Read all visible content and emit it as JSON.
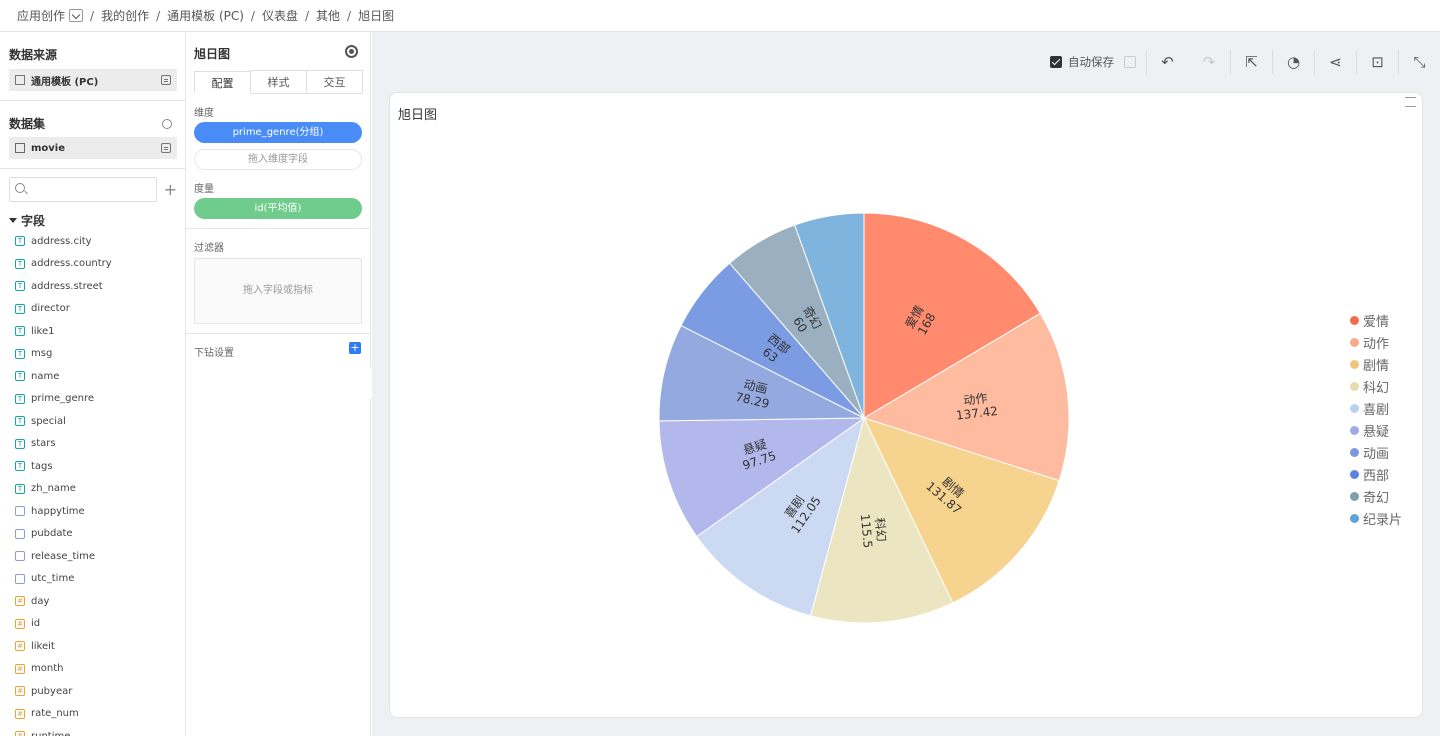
{
  "breadcrumb": {
    "items": [
      "应用创作",
      "我的创作",
      "通用模板 (PC)",
      "仪表盘",
      "其他",
      "旭日图"
    ]
  },
  "left": {
    "datasource_title": "数据来源",
    "datasource_name": "通用模板 (PC)",
    "dataset_title": "数据集",
    "dataset_name": "movie",
    "search_placeholder": "",
    "fields_title": "字段",
    "fields": [
      {
        "name": "address.city",
        "type": "text"
      },
      {
        "name": "address.country",
        "type": "text"
      },
      {
        "name": "address.street",
        "type": "text"
      },
      {
        "name": "director",
        "type": "text"
      },
      {
        "name": "like1",
        "type": "text"
      },
      {
        "name": "msg",
        "type": "text"
      },
      {
        "name": "name",
        "type": "text"
      },
      {
        "name": "prime_genre",
        "type": "text"
      },
      {
        "name": "special",
        "type": "text"
      },
      {
        "name": "stars",
        "type": "text"
      },
      {
        "name": "tags",
        "type": "text"
      },
      {
        "name": "zh_name",
        "type": "text"
      },
      {
        "name": "happytime",
        "type": "date"
      },
      {
        "name": "pubdate",
        "type": "date"
      },
      {
        "name": "release_time",
        "type": "date"
      },
      {
        "name": "utc_time",
        "type": "date"
      },
      {
        "name": "day",
        "type": "num"
      },
      {
        "name": "id",
        "type": "num"
      },
      {
        "name": "likeit",
        "type": "num"
      },
      {
        "name": "month",
        "type": "num"
      },
      {
        "name": "pubyear",
        "type": "num"
      },
      {
        "name": "rate_num",
        "type": "num"
      },
      {
        "name": "runtime",
        "type": "num"
      }
    ]
  },
  "config": {
    "title": "旭日图",
    "tabs": [
      "配置",
      "样式",
      "交互"
    ],
    "dimension_label": "维度",
    "dimension_value": "prime_genre(分组)",
    "dimension_placeholder": "拖入维度字段",
    "measure_label": "度量",
    "measure_value": "id(平均值)",
    "filter_label": "过滤器",
    "filter_placeholder": "拖入字段或指标",
    "drill_label": "下钻设置"
  },
  "toolbar": {
    "autosave_label": "自动保存"
  },
  "chart_card": {
    "title": "旭日图"
  },
  "chart_data": {
    "type": "pie",
    "categories": [
      "爱情",
      "动作",
      "剧情",
      "科幻",
      "喜剧",
      "悬疑",
      "动画",
      "西部",
      "奇幻",
      "纪录片"
    ],
    "values": [
      168,
      137.42,
      131.87,
      115.5,
      112.05,
      97.75,
      78.29,
      63,
      60,
      56
    ],
    "slice_colors": [
      "#ff8a6e",
      "#ffbba0",
      "#f6d38f",
      "#ebe6c1",
      "#ccd9f2",
      "#b3b8ec",
      "#94a9e0",
      "#7b9be3",
      "#9aafc0",
      "#7fb4de"
    ],
    "legend_colors": [
      "#f26b4f",
      "#f9a98a",
      "#f0c77a",
      "#e4dcae",
      "#bcd0ef",
      "#a3aae3",
      "#7d96dc",
      "#5e82dd",
      "#7f9eae",
      "#5fa2d8"
    ],
    "data_labels": [
      "168",
      "137.42",
      "131.87",
      "115.5",
      "112.05",
      "97.75",
      "78.29",
      "63",
      "60",
      ""
    ],
    "legend_position": "right"
  }
}
